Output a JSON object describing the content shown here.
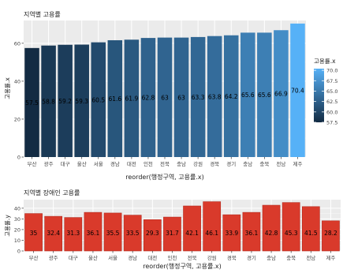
{
  "chart_data": [
    {
      "type": "bar",
      "title": "지역별 고용률",
      "xlabel": "reorder(행정구역, 고용률.x)",
      "ylabel": "고용률.x",
      "categories": [
        "부산",
        "광주",
        "대구",
        "울산",
        "서울",
        "경남",
        "대전",
        "인천",
        "전북",
        "충남",
        "강원",
        "경북",
        "경기",
        "충남",
        "충북",
        "전남",
        "제주"
      ],
      "values": [
        57.5,
        58.8,
        59.2,
        59.3,
        60.5,
        61.6,
        61.9,
        62.8,
        63.0,
        63.0,
        63.3,
        63.8,
        64.2,
        65.6,
        65.6,
        66.9,
        70.4
      ],
      "labels": [
        "57.5",
        "58.8",
        "59.2",
        "59.3",
        "60.5",
        "61.6",
        "61.9",
        "62.8",
        "63",
        "63",
        "63.3",
        "63.8",
        "64.2",
        "65.6",
        "65.6",
        "66.9",
        "70.4"
      ],
      "ylim": [
        0,
        72
      ],
      "yticks": [
        0,
        20,
        40,
        60
      ],
      "grid": true,
      "legend": {
        "title": "고용률.x",
        "position": "right",
        "ticks": [
          70.0,
          67.5,
          65.0,
          62.5,
          60.0,
          57.5
        ],
        "tick_labels": [
          "70.0",
          "67.5",
          "65.0",
          "62.5",
          "60.0",
          "57.5"
        ],
        "range": [
          57.5,
          70.4
        ]
      },
      "colors": {
        "low": "#132B43",
        "high": "#56B1F7",
        "panel": "#EBEBEB",
        "grid": "#FFFFFF",
        "label": "#000000"
      }
    },
    {
      "type": "bar",
      "title": "지역별 장애인 고용률",
      "xlabel": "reorder(행정구역, 고용률.x)",
      "ylabel": "고용률.y",
      "categories": [
        "부산",
        "광주",
        "대구",
        "울산",
        "서울",
        "경남",
        "대전",
        "인천",
        "전북",
        "강원",
        "경북",
        "경기",
        "충남",
        "충북",
        "전남",
        "제주"
      ],
      "values": [
        35,
        32.4,
        31.3,
        36.1,
        35.5,
        33.5,
        29.3,
        31.7,
        42.1,
        46.1,
        33.9,
        36.1,
        42.8,
        45.3,
        41.5,
        28.2
      ],
      "labels": [
        "35",
        "32.4",
        "31.3",
        "36.1",
        "35.5",
        "33.5",
        "29.3",
        "31.7",
        "42.1",
        "46.1",
        "33.9",
        "36.1",
        "42.8",
        "45.3",
        "41.5",
        "28.2"
      ],
      "ylim": [
        0,
        48
      ],
      "yticks": [
        0,
        10,
        20,
        30,
        40
      ],
      "grid": true,
      "colors": {
        "bar": "#D93A2B",
        "bar_stroke": "#B5281C",
        "panel": "#EBEBEB",
        "grid": "#FFFFFF",
        "label": "#000000"
      }
    }
  ]
}
